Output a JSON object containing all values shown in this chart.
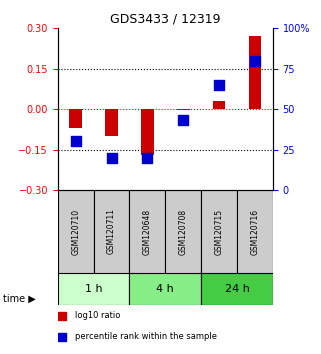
{
  "title": "GDS3433 / 12319",
  "samples": [
    "GSM120710",
    "GSM120711",
    "GSM120648",
    "GSM120708",
    "GSM120715",
    "GSM120716"
  ],
  "log10_ratio": [
    -0.07,
    -0.1,
    -0.17,
    -0.005,
    0.03,
    0.27
  ],
  "percentile_rank": [
    30,
    20,
    20,
    43,
    65,
    80
  ],
  "ylim_left": [
    -0.3,
    0.3
  ],
  "ylim_right": [
    0,
    100
  ],
  "yticks_left": [
    -0.3,
    -0.15,
    0,
    0.15,
    0.3
  ],
  "yticks_right": [
    0,
    25,
    50,
    75,
    100
  ],
  "hlines_dotted": [
    0.15,
    -0.15
  ],
  "hline_red": 0,
  "bar_color": "#cc0000",
  "dot_color": "#0000cc",
  "bar_width": 0.35,
  "dot_size": 60,
  "time_groups": [
    {
      "label": "1 h",
      "samples": [
        "GSM120710",
        "GSM120711"
      ],
      "color": "#ccffcc"
    },
    {
      "label": "4 h",
      "samples": [
        "GSM120648",
        "GSM120708"
      ],
      "color": "#88ee88"
    },
    {
      "label": "24 h",
      "samples": [
        "GSM120715",
        "GSM120716"
      ],
      "color": "#44cc44"
    }
  ],
  "legend_items": [
    {
      "label": "log10 ratio",
      "color": "#cc0000",
      "marker": "s"
    },
    {
      "label": "percentile rank within the sample",
      "color": "#0000cc",
      "marker": "s"
    }
  ],
  "xlabel_rotation": 90,
  "sample_box_color": "#cccccc",
  "figsize": [
    3.21,
    3.54
  ],
  "dpi": 100
}
